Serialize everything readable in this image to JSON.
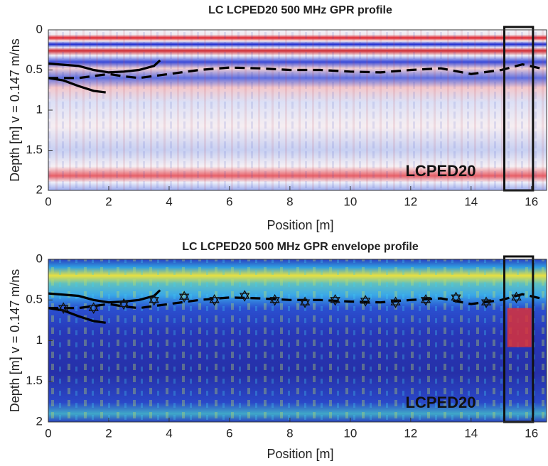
{
  "chart_data": [
    {
      "type": "profile",
      "title": "LC LCPED20 500 MHz GPR profile",
      "xlabel": "Position [m]",
      "ylabel": "Depth [m] v = 0.147 m/ns",
      "annotation": "LCPED20",
      "xlim": [
        0,
        16.5
      ],
      "ylim": [
        0,
        2
      ],
      "y_reversed": true,
      "xticks": [
        0,
        2,
        4,
        6,
        8,
        10,
        12,
        14,
        16
      ],
      "yticks": [
        0,
        0.5,
        1,
        1.5,
        2
      ],
      "box_x": [
        15.1,
        16.05
      ],
      "lines": [
        {
          "style": "dashed",
          "color": "#000000",
          "x": [
            0,
            1,
            2,
            2.5,
            3,
            4,
            5,
            6,
            7,
            8,
            9,
            10,
            11,
            12,
            13,
            14,
            15,
            15.7,
            16.3
          ],
          "y": [
            0.6,
            0.6,
            0.55,
            0.58,
            0.6,
            0.55,
            0.5,
            0.47,
            0.48,
            0.5,
            0.5,
            0.52,
            0.53,
            0.5,
            0.48,
            0.55,
            0.5,
            0.43,
            0.48
          ]
        },
        {
          "style": "solid",
          "color": "#000000",
          "x": [
            0,
            1,
            1.5,
            2,
            2.5,
            3,
            3.5,
            3.7
          ],
          "y": [
            0.42,
            0.45,
            0.5,
            0.53,
            0.52,
            0.5,
            0.45,
            0.38
          ]
        },
        {
          "style": "solid",
          "color": "#000000",
          "x": [
            0,
            0.5,
            1,
            1.5,
            1.9
          ],
          "y": [
            0.6,
            0.63,
            0.7,
            0.76,
            0.78
          ]
        }
      ]
    },
    {
      "type": "profile",
      "title": "LC LCPED20 500 MHz GPR envelope profile",
      "xlabel": "Position [m]",
      "ylabel": "Depth [m] v = 0.147 m/ns",
      "annotation": "LCPED20",
      "xlim": [
        0,
        16.5
      ],
      "ylim": [
        0,
        2
      ],
      "y_reversed": true,
      "xticks": [
        0,
        2,
        4,
        6,
        8,
        10,
        12,
        14,
        16
      ],
      "yticks": [
        0,
        0.5,
        1,
        1.5,
        2
      ],
      "box_x": [
        15.1,
        16.05
      ],
      "region": {
        "x": [
          15.2,
          16.0
        ],
        "y": [
          0.6,
          1.08
        ],
        "color": "#d8303a"
      },
      "lines": [
        {
          "style": "dashed",
          "color": "#000000",
          "x": [
            0,
            1,
            2,
            2.5,
            3,
            4,
            5,
            6,
            7,
            8,
            9,
            10,
            11,
            12,
            13,
            14,
            15,
            15.7,
            16.3
          ],
          "y": [
            0.6,
            0.6,
            0.55,
            0.58,
            0.6,
            0.55,
            0.5,
            0.47,
            0.48,
            0.5,
            0.5,
            0.52,
            0.53,
            0.5,
            0.48,
            0.55,
            0.5,
            0.43,
            0.48
          ]
        },
        {
          "style": "solid",
          "color": "#000000",
          "x": [
            0,
            1,
            1.5,
            2,
            2.5,
            3,
            3.5,
            3.7
          ],
          "y": [
            0.42,
            0.45,
            0.5,
            0.53,
            0.52,
            0.5,
            0.45,
            0.38
          ]
        },
        {
          "style": "solid",
          "color": "#000000",
          "x": [
            0,
            0.5,
            1,
            1.5,
            1.9
          ],
          "y": [
            0.6,
            0.63,
            0.7,
            0.76,
            0.78
          ]
        }
      ],
      "stars": {
        "x": [
          0.5,
          1.5,
          2.5,
          3.5,
          4.5,
          5.5,
          6.5,
          7.5,
          8.5,
          9.5,
          10.5,
          11.5,
          12.5,
          13.5,
          14.5,
          15.5
        ],
        "y": [
          0.6,
          0.6,
          0.55,
          0.5,
          0.46,
          0.5,
          0.45,
          0.5,
          0.53,
          0.5,
          0.51,
          0.53,
          0.5,
          0.47,
          0.53,
          0.47
        ]
      }
    }
  ]
}
